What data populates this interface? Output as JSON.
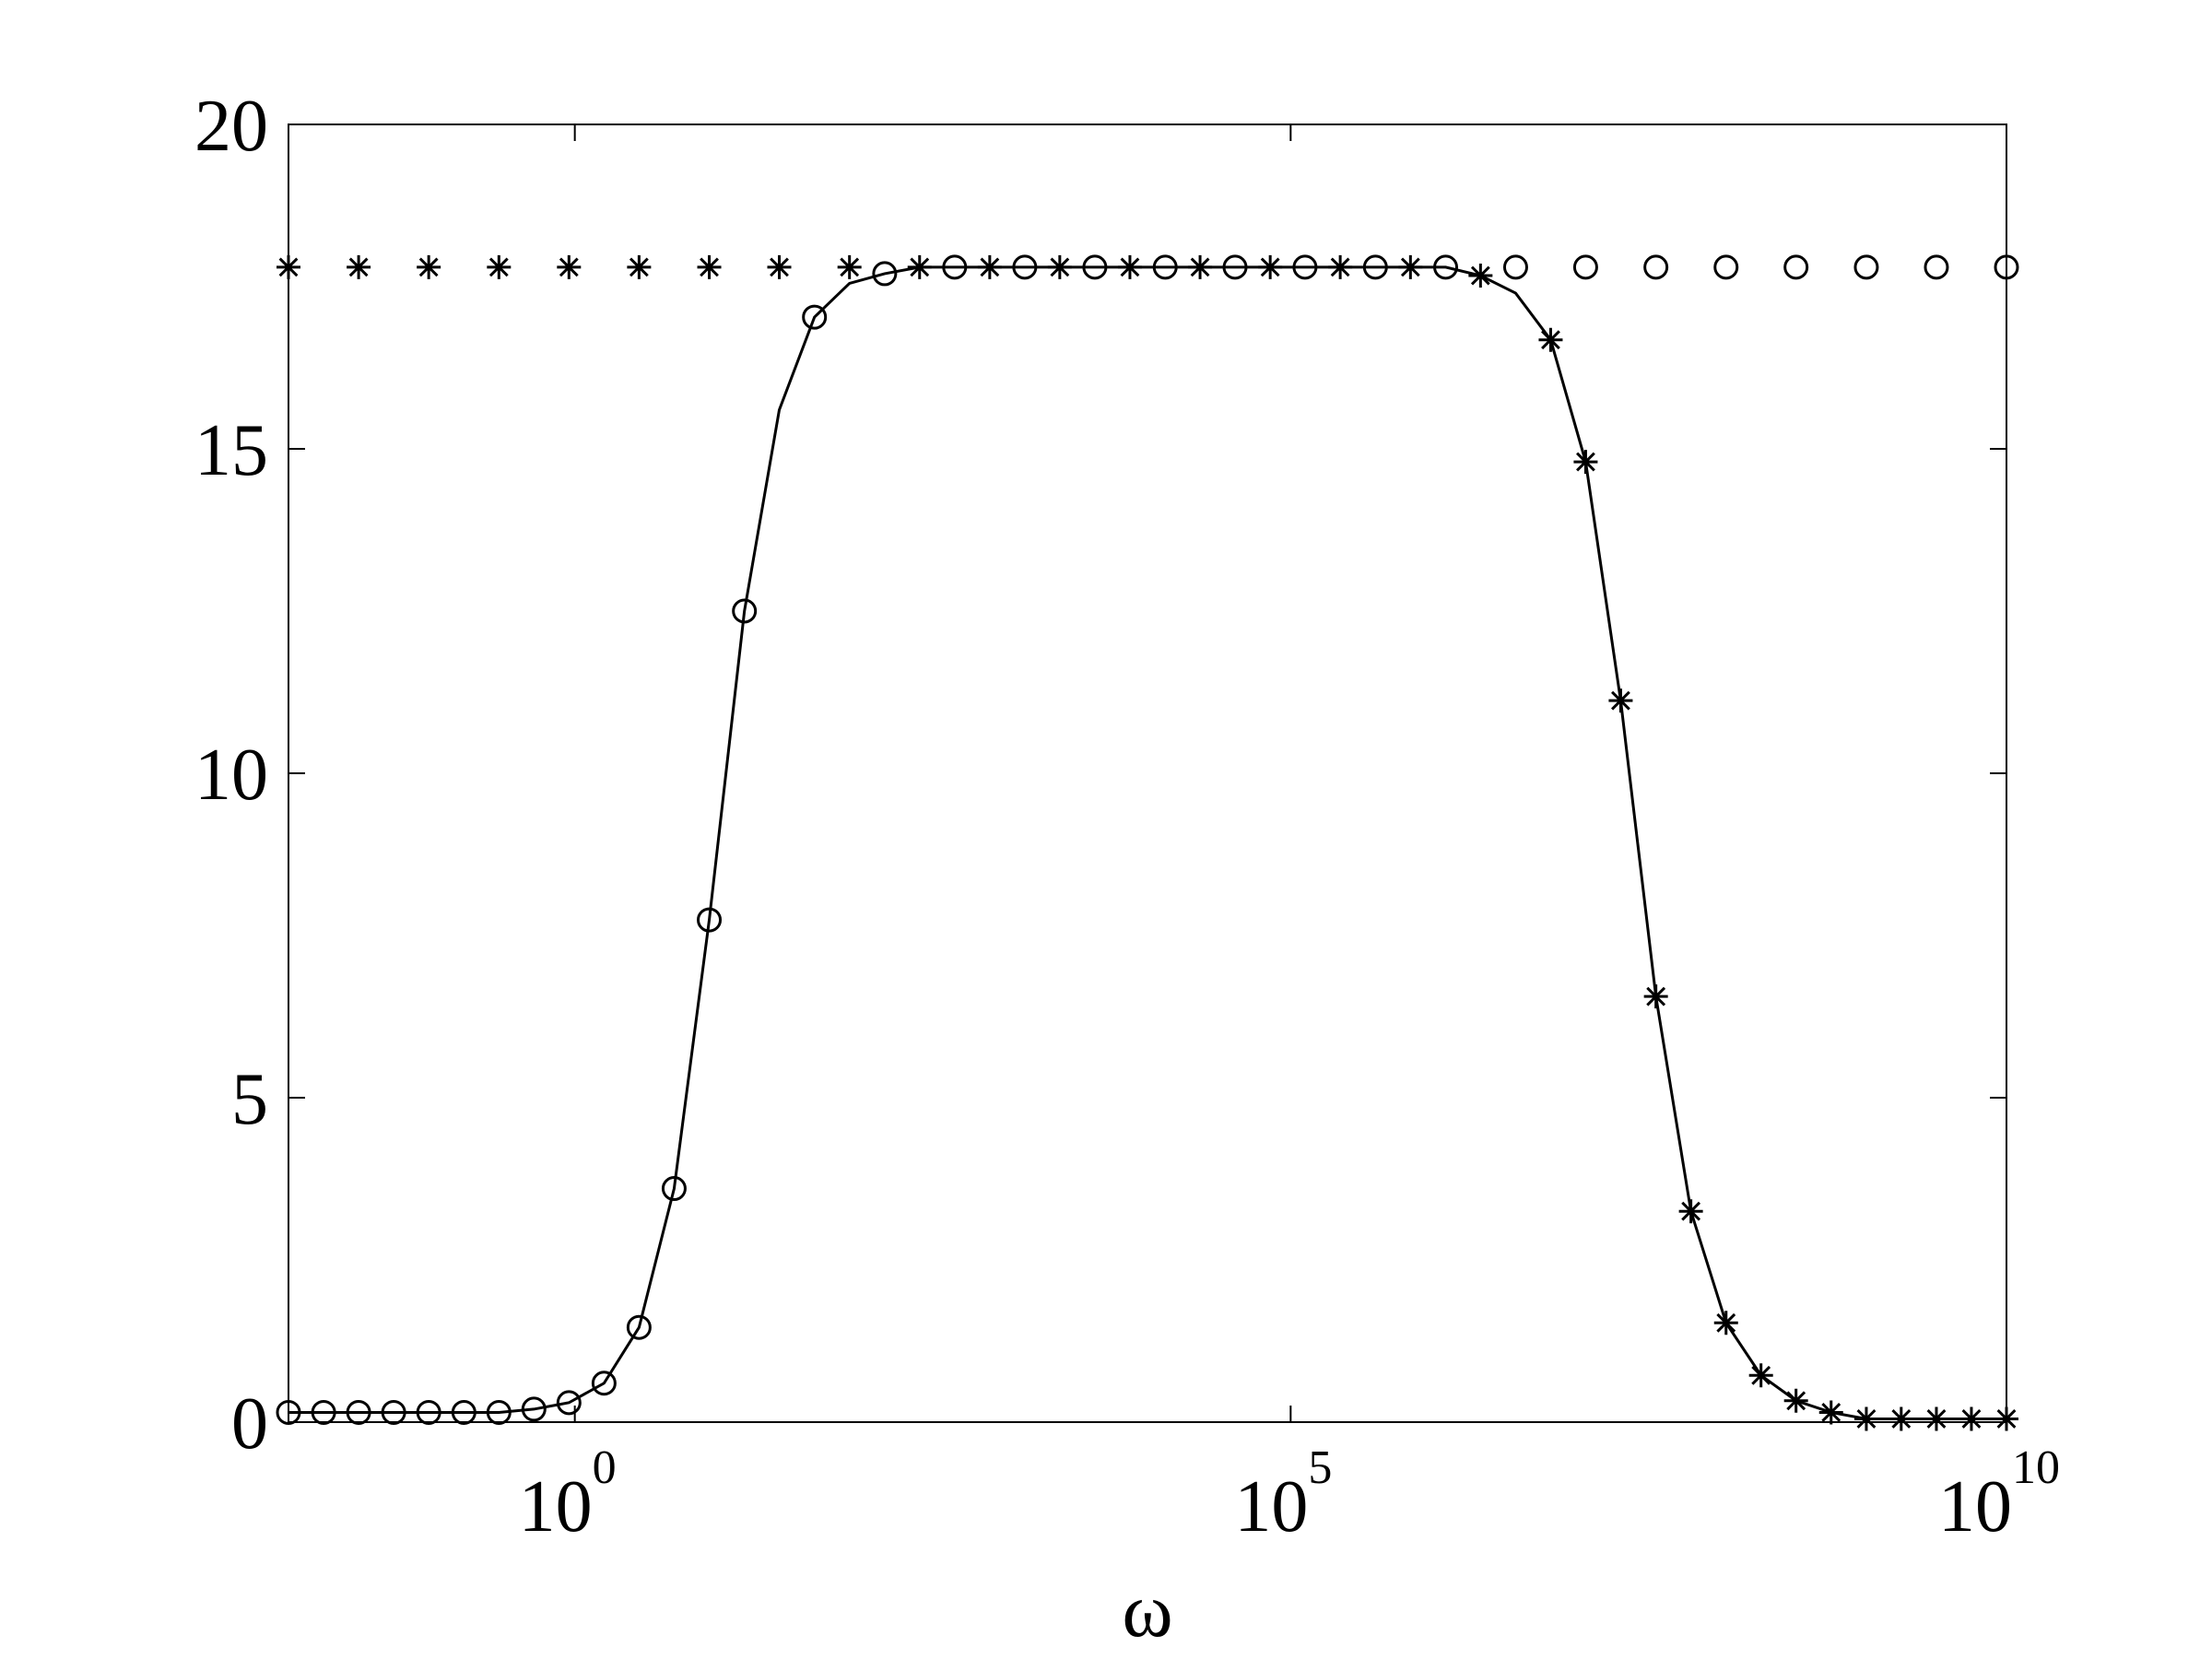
{
  "chart_data": {
    "type": "line",
    "xlabel": "ω",
    "xscale": "log",
    "x": [
      0.01,
      0.0176,
      0.0309,
      0.0543,
      0.0954,
      0.168,
      0.295,
      0.518,
      0.91,
      1.6,
      2.81,
      4.94,
      8.69,
      15.3,
      26.8,
      47.2,
      82.9,
      146,
      256,
      450,
      791,
      1390,
      2440,
      4290,
      7540,
      13300,
      23300,
      40900,
      72000,
      126000,
      222000,
      391000,
      687000,
      1210000,
      2120000,
      3730000,
      6550000,
      11500000,
      20200000,
      35600000,
      62500000,
      110000000,
      193000000,
      339000000,
      596000000,
      1050000000,
      1840000000,
      3240000000,
      5690000000,
      10000000000
    ],
    "series": [
      {
        "marker": "none",
        "color": "#000000",
        "values": [
          0.15,
          0.15,
          0.15,
          0.15,
          0.15,
          0.15,
          0.15,
          0.2,
          0.3,
          0.6,
          1.46,
          3.6,
          7.74,
          12.5,
          15.6,
          17.03,
          17.55,
          17.7,
          17.8,
          17.8,
          17.8,
          17.8,
          17.8,
          17.8,
          17.8,
          17.8,
          17.8,
          17.8,
          17.8,
          17.8,
          17.8,
          17.8,
          17.8,
          17.8,
          17.67,
          17.4,
          16.68,
          14.8,
          11.12,
          6.56,
          3.25,
          1.53,
          0.72,
          0.33,
          0.15,
          0.05,
          0.05,
          0.05,
          0.05,
          0.05
        ]
      },
      {
        "marker": "circle",
        "color": "#000000",
        "values": [
          0.15,
          0.15,
          0.15,
          0.15,
          0.15,
          0.15,
          0.15,
          0.2,
          0.3,
          0.6,
          1.46,
          3.6,
          7.74,
          12.5,
          null,
          17.03,
          null,
          17.7,
          null,
          17.8,
          null,
          17.8,
          null,
          17.8,
          null,
          17.8,
          null,
          17.8,
          null,
          17.8,
          null,
          17.8,
          null,
          17.8,
          null,
          17.8,
          null,
          17.8,
          null,
          17.8,
          null,
          17.8,
          null,
          17.8,
          null,
          17.8,
          null,
          17.8,
          null,
          17.8
        ]
      },
      {
        "marker": "star",
        "color": "#000000",
        "values": [
          17.8,
          null,
          17.8,
          null,
          17.8,
          null,
          17.8,
          null,
          17.8,
          null,
          17.8,
          null,
          17.8,
          null,
          17.8,
          null,
          17.8,
          null,
          17.8,
          null,
          17.8,
          null,
          17.8,
          null,
          17.8,
          null,
          17.8,
          null,
          17.8,
          null,
          17.8,
          null,
          17.8,
          null,
          17.67,
          null,
          16.68,
          14.8,
          11.12,
          6.56,
          3.25,
          1.53,
          0.72,
          0.33,
          0.15,
          0.05,
          0.05,
          0.05,
          0.05,
          0.05
        ]
      }
    ],
    "xlim": [
      0.01,
      10000000000
    ],
    "xticks": [
      {
        "value": 1,
        "label": "10",
        "exponent": "0"
      },
      {
        "value": 100000,
        "label": "10",
        "exponent": "5"
      },
      {
        "value": 10000000000,
        "label": "10",
        "exponent": "10"
      }
    ],
    "ylim": [
      0,
      20
    ],
    "yticks": [
      0,
      5,
      10,
      15,
      20
    ],
    "grid": false
  }
}
